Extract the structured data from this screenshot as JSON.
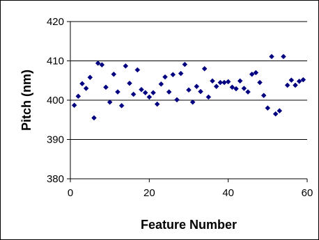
{
  "chart_data": {
    "type": "scatter",
    "title": "",
    "xlabel": "Feature Number",
    "ylabel": "Pitch (nm)",
    "xlim": [
      0,
      60
    ],
    "ylim": [
      380,
      420
    ],
    "x_ticks": [
      0,
      20,
      40,
      60
    ],
    "y_ticks": [
      380,
      390,
      400,
      410,
      420
    ],
    "grid": "horizontal major",
    "legend": "none",
    "marker": "diamond",
    "marker_color": "#000080",
    "series": [
      {
        "x": [
          1,
          2,
          3,
          4,
          5,
          6,
          7,
          8,
          9,
          10,
          11,
          12,
          13,
          14,
          15,
          16,
          17,
          18,
          19,
          20,
          21,
          22,
          23,
          24,
          25,
          26,
          27,
          28,
          29,
          30,
          31,
          32,
          33,
          34,
          35,
          36,
          37,
          38,
          39,
          40,
          41,
          42,
          43,
          44,
          45,
          46,
          47,
          48,
          49,
          50,
          51,
          52,
          53,
          54,
          55,
          56,
          57,
          58,
          59
        ],
        "y": [
          398.7,
          401.0,
          404.2,
          403.0,
          405.8,
          395.5,
          409.4,
          409.0,
          403.3,
          399.5,
          406.6,
          402.1,
          398.6,
          408.7,
          404.3,
          401.5,
          407.7,
          402.7,
          401.9,
          400.8,
          401.9,
          399.0,
          404.1,
          405.9,
          402.1,
          406.5,
          400.1,
          406.8,
          409.1,
          402.6,
          399.5,
          403.5,
          402.2,
          408.0,
          400.8,
          404.9,
          403.5,
          404.5,
          404.5,
          404.7,
          403.3,
          402.9,
          404.9,
          403.0,
          402.1,
          406.6,
          407.0,
          404.5,
          401.2,
          398.0,
          411.1,
          396.5,
          397.3,
          411.1,
          403.8,
          405.1,
          403.8,
          404.8,
          405.2
        ]
      }
    ]
  }
}
